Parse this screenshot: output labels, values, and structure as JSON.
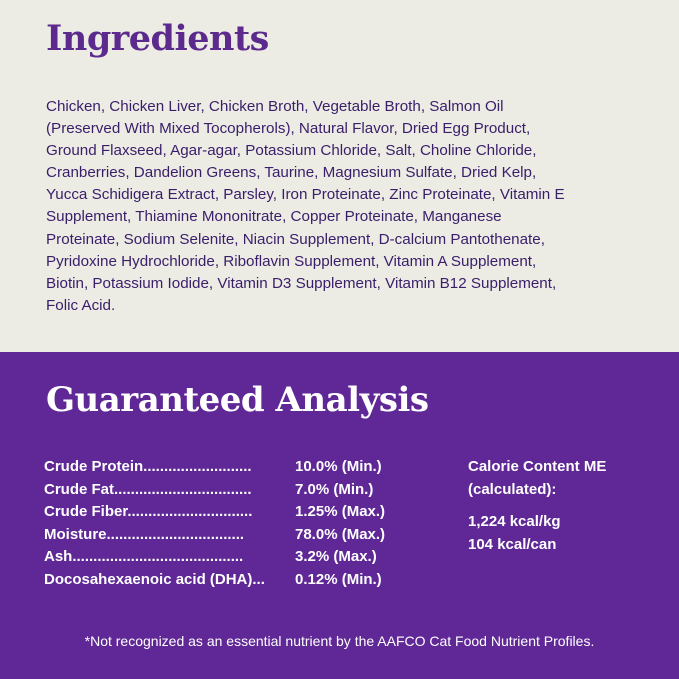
{
  "ingredients": {
    "title": "Ingredients",
    "lines": [
      "Chicken, Chicken Liver, Chicken Broth, Vegetable Broth, Salmon Oil",
      "(Preserved With Mixed Tocopherols), Natural Flavor, Dried Egg Product,",
      "Ground Flaxseed, Agar-agar, Potassium Chloride, Salt, Choline Chloride,",
      "Cranberries, Dandelion Greens, Taurine, Magnesium Sulfate, Dried Kelp,",
      "Yucca Schidigera Extract, Parsley, Iron Proteinate, Zinc Proteinate, Vitamin E",
      "Supplement, Thiamine Mononitrate, Copper Proteinate, Manganese",
      "Proteinate, Sodium Selenite, Niacin Supplement, D-calcium Pantothenate,",
      "Pyridoxine Hydrochloride, Riboflavin Supplement, Vitamin A Supplement,",
      "Biotin, Potassium Iodide, Vitamin D3 Supplement, Vitamin B12 Supplement,",
      "Folic Acid."
    ]
  },
  "analysis": {
    "title": "Guaranteed Analysis",
    "rows": [
      {
        "name": "Crude Protein..........................",
        "value": "10.0% (Min.)"
      },
      {
        "name": "Crude Fat.................................",
        "value": "7.0% (Min.)"
      },
      {
        "name": "Crude Fiber..............................",
        "value": "1.25% (Max.)"
      },
      {
        "name": "Moisture.................................",
        "value": "78.0% (Max.)"
      },
      {
        "name": "Ash.........................................",
        "value": "3.2% (Max.)"
      },
      {
        "name": "Docosahexaenoic acid (DHA)...",
        "value": "0.12% (Min.)"
      }
    ],
    "calorie": {
      "label1": "Calorie Content ME",
      "label2": "(calculated):",
      "kg": "1,224 kcal/kg",
      "can": "104 kcal/can"
    },
    "footnote": "*Not recognized as an essential nutrient by the AAFCO Cat Food Nutrient Profiles."
  },
  "colors": {
    "background_top": "#ecebe4",
    "background_bottom": "#5f2896",
    "title": "#5b2a8c",
    "text": "#3a1e6a"
  }
}
